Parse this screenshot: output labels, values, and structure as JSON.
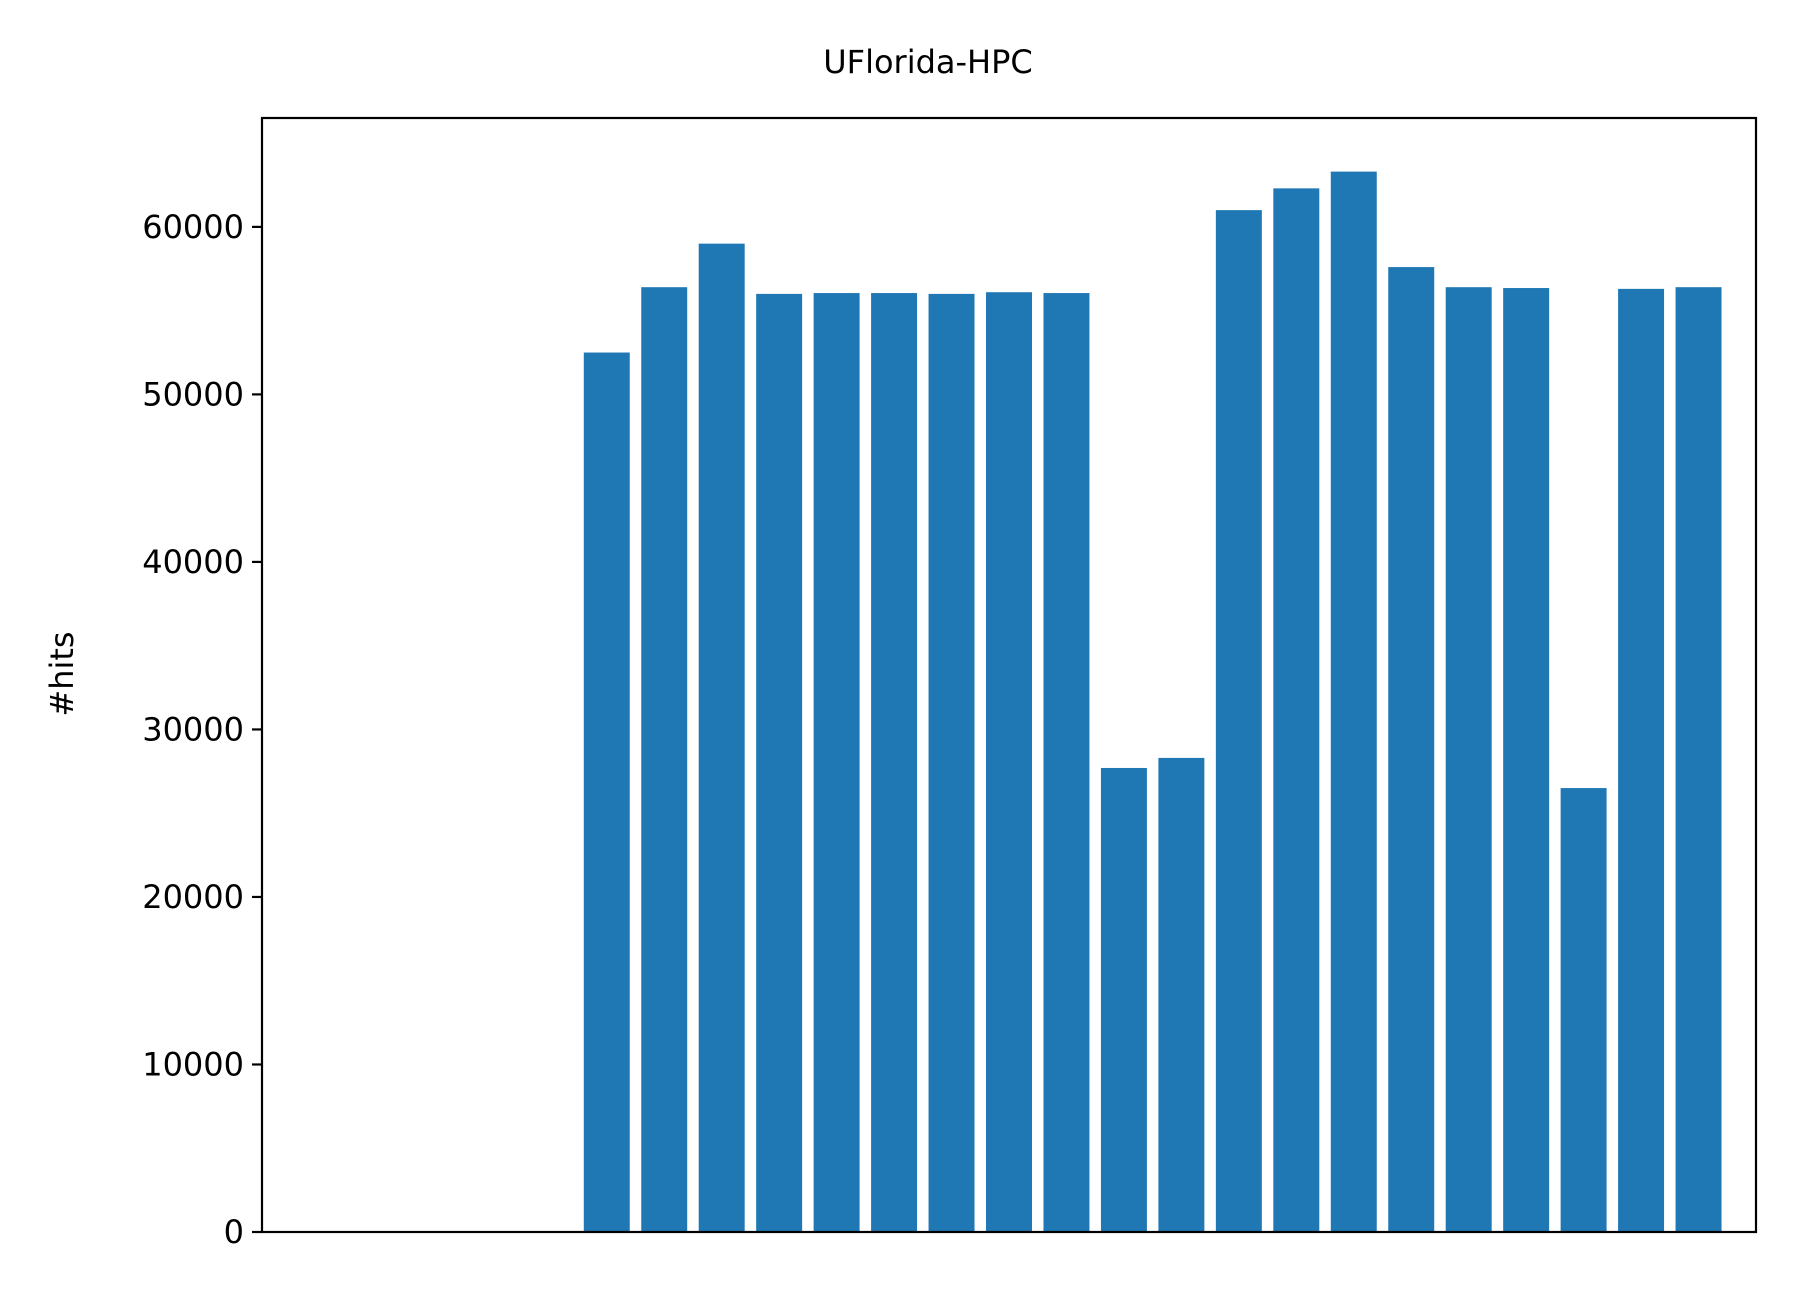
{
  "chart_data": {
    "type": "bar",
    "title": "UFlorida-HPC",
    "xlabel": "",
    "ylabel": "#hits",
    "xlim": [
      -6.0,
      20.0
    ],
    "ylim": [
      0,
      66500
    ],
    "yticks": [
      0,
      10000,
      20000,
      30000,
      40000,
      50000,
      60000
    ],
    "ytick_labels": [
      "0",
      "10000",
      "20000",
      "30000",
      "40000",
      "50000",
      "60000"
    ],
    "show_xticks": false,
    "grid": false,
    "values": [
      52500,
      56400,
      59000,
      56000,
      56050,
      56050,
      56000,
      56100,
      56050,
      27700,
      28300,
      61000,
      62300,
      63300,
      57600,
      56400,
      56350,
      26500,
      56300,
      56400
    ],
    "colors": {
      "bar": "#1f77b4",
      "axes": "#000000",
      "background": "#ffffff"
    }
  }
}
